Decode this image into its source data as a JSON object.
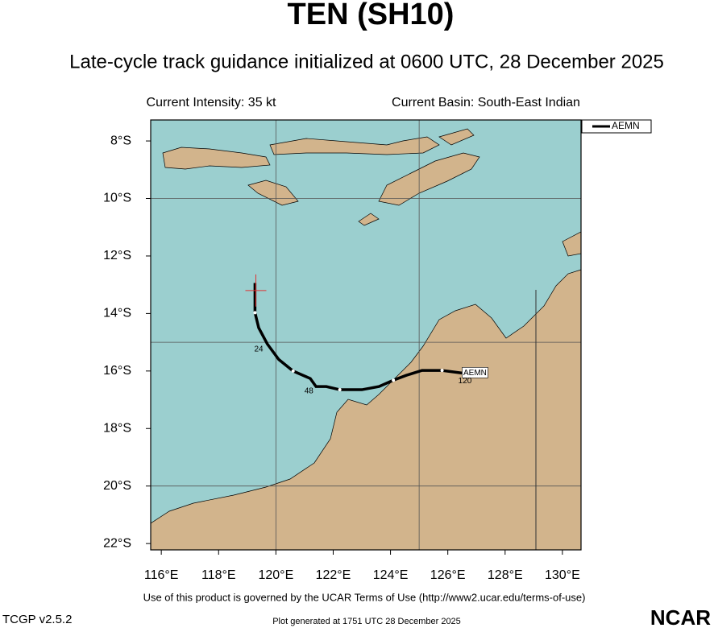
{
  "header": {
    "title": "TEN (SH10)",
    "subtitle": "Late-cycle track guidance initialized at 0600 UTC, 28 December 2025",
    "intensity": "Current Intensity: 35 kt",
    "basin": "Current Basin: South-East Indian"
  },
  "map": {
    "xlim": [
      115.63,
      130.65
    ],
    "ylim": [
      -7.27,
      -22.22
    ],
    "xticks": [
      {
        "value": 116,
        "label": "116°E"
      },
      {
        "value": 118,
        "label": "118°E"
      },
      {
        "value": 120,
        "label": "120°E"
      },
      {
        "value": 122,
        "label": "122°E"
      },
      {
        "value": 124,
        "label": "124°E"
      },
      {
        "value": 126,
        "label": "126°E"
      },
      {
        "value": 128,
        "label": "128°E"
      },
      {
        "value": 130,
        "label": "130°E"
      }
    ],
    "yticks": [
      {
        "value": -8,
        "label": "8°S"
      },
      {
        "value": -10,
        "label": "10°S"
      },
      {
        "value": -12,
        "label": "12°S"
      },
      {
        "value": -14,
        "label": "14°S"
      },
      {
        "value": -16,
        "label": "16°S"
      },
      {
        "value": -18,
        "label": "18°S"
      },
      {
        "value": -20,
        "label": "20°S"
      },
      {
        "value": -22,
        "label": "22°S"
      }
    ],
    "grid_lon": [
      120,
      125
    ],
    "grid_lat": [
      -10,
      -15,
      -20
    ],
    "storm": {
      "lon": 119.3,
      "lat": -13.2,
      "color": "#e03030"
    },
    "track": {
      "name": "AEMN",
      "color": "#000000",
      "lon": [
        119.27,
        119.27,
        119.4,
        119.7,
        120.1,
        120.6,
        121.2,
        121.4,
        121.76,
        122.23,
        123.0,
        123.6,
        124.1,
        124.55,
        125.1,
        125.8,
        126.5
      ],
      "lat": [
        -12.94,
        -13.97,
        -14.5,
        -15.06,
        -15.6,
        -16.0,
        -16.26,
        -16.54,
        -16.54,
        -16.65,
        -16.65,
        -16.54,
        -16.32,
        -16.15,
        -15.98,
        -15.98,
        -16.07
      ]
    },
    "taus": [
      {
        "text": "24",
        "lon": 119.4,
        "lat": -15.25
      },
      {
        "text": "48",
        "lon": 121.15,
        "lat": -16.7
      },
      {
        "text": "120",
        "lon": 126.6,
        "lat": -16.35
      }
    ]
  },
  "footer": {
    "terms": "Use of this product is governed by the UCAR Terms of Use (http://www2.ucar.edu/terms-of-use)",
    "version": "TCGP v2.5.2",
    "generated": "Plot generated at 1751 UTC   28 December 2025",
    "logo": "NCAR"
  }
}
